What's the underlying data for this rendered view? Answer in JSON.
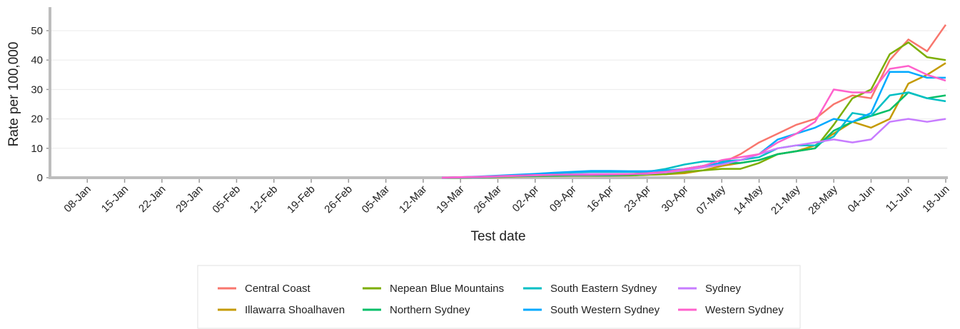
{
  "chart_data": {
    "type": "line",
    "x_label": "Test date",
    "y_label": "Rate per 100,000",
    "categories": [
      null,
      null,
      "08-Jan",
      null,
      "15-Jan",
      null,
      "22-Jan",
      null,
      "29-Jan",
      null,
      "05-Feb",
      null,
      "12-Feb",
      null,
      "19-Feb",
      null,
      "26-Feb",
      null,
      "05-Mar",
      null,
      "12-Mar",
      null,
      "19-Mar",
      null,
      "26-Mar",
      null,
      "02-Apr",
      null,
      "09-Apr",
      null,
      "16-Apr",
      null,
      "23-Apr",
      null,
      "30-Apr",
      null,
      "07-May",
      null,
      "14-May",
      null,
      "21-May",
      null,
      "28-May",
      null,
      "04-Jun",
      null,
      "11-Jun",
      null,
      "18-Jun"
    ],
    "ylim": [
      0,
      58
    ],
    "yticks": [
      0,
      10,
      20,
      30,
      40,
      50
    ],
    "grid": true,
    "legend": "bottom",
    "series": [
      {
        "name": "Central Coast",
        "color": "#f8766d",
        "values": [
          null,
          null,
          null,
          null,
          null,
          null,
          null,
          null,
          null,
          null,
          null,
          null,
          null,
          null,
          null,
          null,
          null,
          null,
          null,
          null,
          null,
          0,
          0.2,
          0.3,
          0.5,
          0.7,
          0.8,
          1,
          1,
          1,
          1,
          1.2,
          1.5,
          2,
          2.5,
          4,
          5,
          8,
          12,
          15,
          18,
          20,
          25,
          28,
          27,
          40,
          47,
          43,
          52
        ]
      },
      {
        "name": "Illawarra Shoalhaven",
        "color": "#c49a00",
        "values": [
          null,
          null,
          null,
          null,
          null,
          null,
          null,
          null,
          null,
          null,
          null,
          null,
          null,
          null,
          null,
          null,
          null,
          null,
          null,
          null,
          null,
          0,
          0,
          0.1,
          0.2,
          0.4,
          0.5,
          0.6,
          0.7,
          0.7,
          0.7,
          0.8,
          1,
          1.2,
          1.5,
          2.5,
          4,
          5,
          6,
          8,
          9,
          11,
          15,
          19,
          17,
          20,
          32,
          35,
          39
        ]
      },
      {
        "name": "Nepean Blue Mountains",
        "color": "#7cae00",
        "values": [
          null,
          null,
          null,
          null,
          null,
          null,
          null,
          null,
          null,
          null,
          null,
          null,
          null,
          null,
          null,
          null,
          null,
          null,
          null,
          null,
          null,
          0,
          0,
          0.1,
          0.3,
          0.5,
          0.6,
          0.8,
          0.8,
          0.8,
          0.8,
          0.8,
          1,
          1.2,
          2,
          2.5,
          3,
          3,
          5,
          8,
          9,
          10,
          18,
          27,
          30,
          42,
          46,
          41,
          40
        ]
      },
      {
        "name": "Northern Sydney",
        "color": "#00be67",
        "values": [
          null,
          null,
          null,
          null,
          null,
          null,
          null,
          null,
          null,
          null,
          null,
          null,
          null,
          null,
          null,
          null,
          null,
          null,
          null,
          null,
          null,
          0,
          0,
          0.1,
          0.3,
          0.5,
          0.6,
          0.7,
          0.8,
          0.8,
          0.8,
          1,
          1.3,
          2,
          3,
          4,
          5,
          5,
          6,
          8,
          9,
          10,
          16,
          19,
          21,
          23,
          29,
          27,
          28
        ]
      },
      {
        "name": "South Eastern Sydney",
        "color": "#00bfc4",
        "values": [
          null,
          null,
          null,
          null,
          null,
          null,
          null,
          null,
          null,
          null,
          null,
          null,
          null,
          null,
          null,
          null,
          null,
          null,
          null,
          null,
          null,
          0,
          0.1,
          0.3,
          0.6,
          0.9,
          1.2,
          1.5,
          1.8,
          2,
          2,
          2,
          2,
          3,
          4.5,
          5.5,
          5.5,
          6,
          7,
          10,
          11,
          11,
          14,
          22,
          21,
          28,
          29,
          27,
          26
        ]
      },
      {
        "name": "South Western Sydney",
        "color": "#00a9ff",
        "values": [
          null,
          null,
          null,
          null,
          null,
          null,
          null,
          null,
          null,
          null,
          null,
          null,
          null,
          null,
          null,
          null,
          null,
          null,
          null,
          null,
          null,
          0,
          0.2,
          0.4,
          0.7,
          1,
          1.3,
          1.7,
          2,
          2.3,
          2.3,
          2.2,
          2.2,
          2.5,
          3,
          4,
          5,
          6,
          8,
          13,
          15,
          17,
          20,
          19,
          22,
          36,
          36,
          34,
          34
        ]
      },
      {
        "name": "Sydney",
        "color": "#c77cff",
        "values": [
          null,
          null,
          null,
          null,
          null,
          null,
          null,
          null,
          null,
          null,
          null,
          null,
          null,
          null,
          null,
          null,
          null,
          null,
          null,
          null,
          null,
          0,
          0.1,
          0.2,
          0.4,
          0.6,
          0.8,
          1,
          1.2,
          1.3,
          1.3,
          1.3,
          1.3,
          1.8,
          2.5,
          3.5,
          4.5,
          6,
          8,
          10,
          11,
          12,
          13,
          12,
          13,
          19,
          20,
          19,
          20
        ]
      },
      {
        "name": "Western Sydney",
        "color": "#ff61cc",
        "values": [
          null,
          null,
          null,
          null,
          null,
          null,
          null,
          null,
          null,
          null,
          null,
          null,
          null,
          null,
          null,
          null,
          null,
          null,
          null,
          null,
          null,
          0,
          0.2,
          0.3,
          0.5,
          0.7,
          0.9,
          1,
          1,
          1,
          1.1,
          1.2,
          1.5,
          2,
          3,
          4,
          6,
          7,
          8,
          12,
          15,
          19,
          30,
          29,
          29,
          37,
          38,
          35,
          33
        ]
      }
    ]
  }
}
